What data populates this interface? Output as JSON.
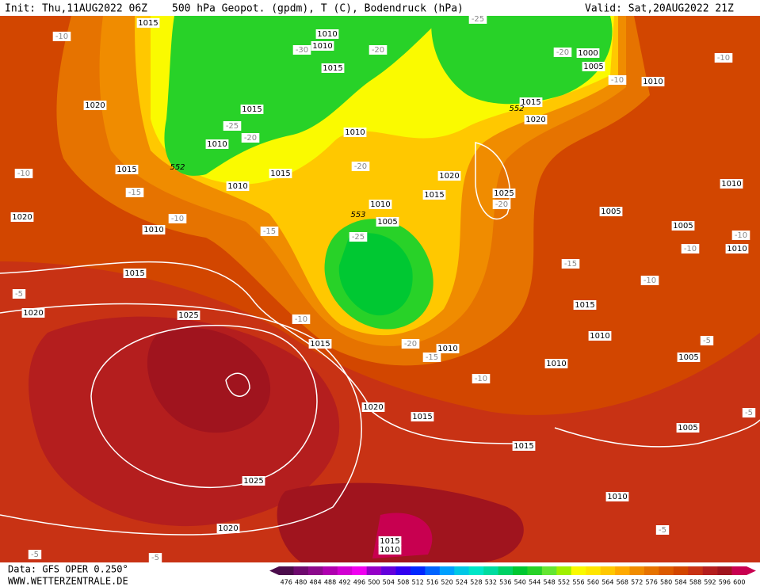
{
  "header": {
    "init": "Init: Thu,11AUG2022 06Z",
    "title": "500 hPa Geopot. (gpdm), T (C), Bodendruck (hPa)",
    "valid": "Valid: Sat,20AUG2022 21Z"
  },
  "footer": {
    "data": "Data: GFS OPER 0.250°",
    "site": "WWW.WETTERZENTRALE.DE"
  },
  "map_labels": [
    "1015",
    "1010",
    "1010",
    "-30",
    "-20",
    "1015",
    "-25",
    "-20",
    "1000",
    "1005",
    "-10",
    "-10",
    "-10",
    "1010",
    "1020",
    "1015",
    "552",
    "1020",
    "1015",
    "-25",
    "-20",
    "1010",
    "1010",
    "552",
    "1015",
    "1015",
    "-20",
    "1020",
    "-10",
    "1010",
    "-15",
    "1015",
    "1025",
    "-20",
    "1010",
    "553",
    "1005",
    "1010",
    "1020",
    "-10",
    "1005",
    "1005",
    "1010",
    "-15",
    "-25",
    "-10",
    "-10",
    "1010",
    "-15",
    "1015",
    "-10",
    "-5",
    "1015",
    "1020",
    "1025",
    "-10",
    "1015",
    "-20",
    "1010",
    "-15",
    "1010",
    "-5",
    "1005",
    "1010",
    "-10",
    "1020",
    "1015",
    "-5",
    "1005",
    "1015",
    "1010",
    "1025",
    "-5",
    "1020",
    "1015",
    "1010",
    "-5",
    "-5"
  ],
  "colorbar": {
    "values": [
      476,
      480,
      484,
      488,
      492,
      496,
      500,
      504,
      508,
      512,
      516,
      520,
      524,
      528,
      532,
      536,
      540,
      544,
      548,
      552,
      556,
      560,
      564,
      568,
      572,
      576,
      580,
      584,
      588,
      592,
      596,
      600
    ],
    "colors": [
      "#4b0c4b",
      "#6e0a6e",
      "#8c0a8c",
      "#b000b0",
      "#d200d2",
      "#f000f0",
      "#9600c8",
      "#6400dc",
      "#3200f0",
      "#0028ff",
      "#0064ff",
      "#00a0ff",
      "#00c8e6",
      "#00e6c8",
      "#00dca0",
      "#00d264",
      "#00c832",
      "#28d228",
      "#64e632",
      "#a0f000",
      "#fafa00",
      "#ffe600",
      "#ffc800",
      "#ffaa00",
      "#f08c00",
      "#e67300",
      "#dc5a00",
      "#d24600",
      "#c83214",
      "#b41e1e",
      "#a0141e",
      "#c80050"
    ]
  }
}
